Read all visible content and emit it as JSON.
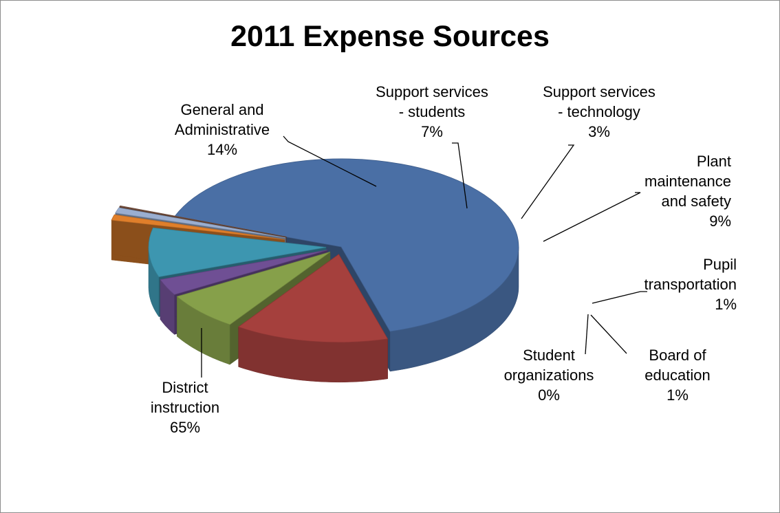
{
  "chart_data": {
    "type": "pie",
    "style": "3d-exploded",
    "title": "2011 Expense Sources",
    "slices": [
      {
        "label_lines": [
          "District",
          "instruction"
        ],
        "pct_text": "65%",
        "value": 65,
        "color": "#4a6fa5"
      },
      {
        "label_lines": [
          "General and",
          "Administrative"
        ],
        "pct_text": "14%",
        "value": 14,
        "color": "#a5403d"
      },
      {
        "label_lines": [
          "Support services",
          "- students"
        ],
        "pct_text": "7%",
        "value": 7,
        "color": "#86a04a"
      },
      {
        "label_lines": [
          "Support services",
          "- technology"
        ],
        "pct_text": "3%",
        "value": 3,
        "color": "#6f4f94"
      },
      {
        "label_lines": [
          "Plant",
          "maintenance",
          "and safety"
        ],
        "pct_text": "9%",
        "value": 9,
        "color": "#3d96b0"
      },
      {
        "label_lines": [
          "Pupil",
          "transportation"
        ],
        "pct_text": "1%",
        "value": 1,
        "color": "#e07f2b"
      },
      {
        "label_lines": [
          "Board of",
          "education"
        ],
        "pct_text": "1%",
        "value": 1,
        "color": "#9aaed0"
      },
      {
        "label_lines": [
          "Student",
          "organizations"
        ],
        "pct_text": "0%",
        "value": 0,
        "color": "#7c5442"
      }
    ],
    "legend": "none",
    "data_labels": "outside with leader lines"
  }
}
